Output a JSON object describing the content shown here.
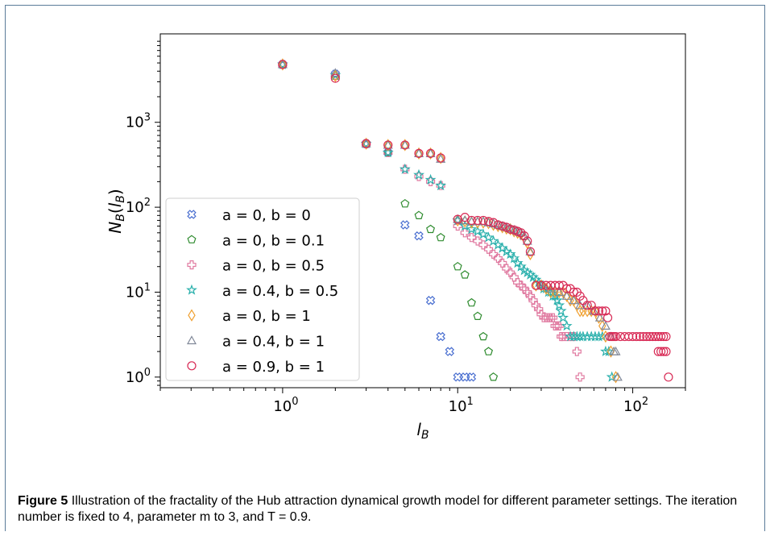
{
  "figure": {
    "label": "Figure 5",
    "caption": "Illustration of the fractality of the Hub attraction dynamical growth model for different parameter settings. The iteration number is fixed to 4, parameter m to 3, and T = 0.9."
  },
  "chart_data": {
    "type": "scatter",
    "title": "",
    "xlabel": "l_B",
    "ylabel": "N_B(l_B)",
    "xscale": "log",
    "yscale": "log",
    "xlim": [
      0.2,
      200
    ],
    "ylim": [
      0.75,
      11000
    ],
    "x_ticks": [
      1,
      10,
      100
    ],
    "x_tick_labels": [
      "10^0",
      "10^1",
      "10^2"
    ],
    "y_ticks": [
      1,
      10,
      100,
      1000
    ],
    "y_tick_labels": [
      "10^0",
      "10^1",
      "10^2",
      "10^3"
    ],
    "grid": false,
    "legend_position": "lower-left",
    "series": [
      {
        "name": "a = 0, b = 0",
        "marker": "x-filled",
        "color": "#4a6fd0",
        "x": [
          1,
          2,
          3,
          4,
          5,
          6,
          7,
          8,
          9,
          10,
          11,
          12
        ],
        "y": [
          4800,
          3700,
          560,
          440,
          62,
          46,
          8,
          3,
          2,
          1,
          1,
          1
        ]
      },
      {
        "name": "a = 0, b = 0.1",
        "marker": "pentagon",
        "color": "#2e8b2e",
        "x": [
          1,
          2,
          3,
          4,
          5,
          6,
          7,
          8,
          10,
          11,
          12,
          13,
          14,
          15
        ],
        "y": [
          4800,
          3500,
          560,
          440,
          110,
          80,
          55,
          44,
          20,
          16,
          7.5,
          5.2,
          3,
          2
        ],
        "x_extra": [
          16
        ],
        "y_extra": [
          1
        ]
      },
      {
        "name": "a = 0, b = 0.5",
        "marker": "plus-filled",
        "color": "#e07aa0",
        "x": [
          1,
          2,
          3,
          4,
          5,
          6,
          7,
          8,
          10,
          11,
          12,
          13,
          14,
          15,
          16,
          17,
          18,
          19,
          20,
          21,
          22,
          23,
          24,
          25,
          26,
          27,
          28,
          29,
          30,
          31,
          32,
          33,
          34,
          35,
          36,
          37,
          38,
          39,
          40,
          42,
          44,
          46,
          48,
          50
        ],
        "y": [
          4800,
          3600,
          560,
          440,
          280,
          230,
          200,
          180,
          60,
          50,
          44,
          40,
          36,
          32,
          28,
          25,
          22,
          19,
          17,
          15,
          13,
          12,
          11,
          10,
          9,
          8,
          7,
          6.3,
          5.5,
          5,
          5,
          5,
          5,
          5,
          4,
          4,
          4,
          3,
          3,
          3,
          3,
          3,
          2,
          1
        ]
      },
      {
        "name": "a = 0.4, b = 0.5",
        "marker": "star",
        "color": "#2ab0ac",
        "x": [
          1,
          2,
          3,
          4,
          5,
          6,
          7,
          8,
          10,
          11,
          12,
          13,
          14,
          15,
          16,
          17,
          18,
          19,
          20,
          21,
          22,
          23,
          24,
          25,
          26,
          27,
          28,
          29,
          30,
          31,
          32,
          33,
          34,
          35,
          36,
          37,
          38,
          39,
          40,
          42,
          44,
          46,
          48,
          50,
          52,
          55,
          58,
          61,
          64,
          67,
          70,
          73,
          76
        ],
        "y": [
          4800,
          3600,
          560,
          440,
          280,
          240,
          210,
          180,
          70,
          60,
          55,
          52,
          48,
          44,
          40,
          36,
          33,
          30,
          28,
          25,
          22,
          20,
          18,
          17,
          16,
          15,
          14,
          13,
          12,
          11,
          11,
          10,
          10,
          9,
          9,
          8,
          7,
          6,
          5,
          4,
          3,
          3,
          3,
          3,
          3,
          3,
          3,
          3,
          3,
          3,
          2,
          2,
          1
        ]
      },
      {
        "name": "a = 0, b = 1",
        "marker": "diamond",
        "color": "#f0a030",
        "x": [
          1,
          2,
          3,
          4,
          5,
          6,
          7,
          8,
          10,
          11,
          12,
          13,
          14,
          15,
          16,
          17,
          18,
          19,
          20,
          21,
          22,
          23,
          24,
          25,
          26,
          28,
          30,
          32,
          34,
          36,
          38,
          40,
          42,
          44,
          46,
          48,
          50,
          52,
          55,
          58,
          61,
          64,
          67,
          70,
          75,
          80
        ],
        "y": [
          4800,
          3500,
          560,
          540,
          540,
          430,
          430,
          380,
          70,
          68,
          66,
          66,
          66,
          65,
          62,
          60,
          58,
          56,
          55,
          52,
          50,
          48,
          44,
          38,
          28,
          12,
          12,
          11,
          10,
          10,
          10,
          10,
          9,
          8,
          8,
          7,
          6,
          6,
          6,
          6,
          6,
          5,
          4,
          3,
          2,
          1
        ]
      },
      {
        "name": "a = 0.4, b = 1",
        "marker": "triangle",
        "color": "#808898",
        "x": [
          1,
          2,
          3,
          4,
          5,
          6,
          7,
          8,
          10,
          11,
          12,
          13,
          14,
          15,
          16,
          17,
          18,
          19,
          20,
          21,
          22,
          23,
          24,
          25,
          26,
          30,
          34,
          38,
          42,
          46,
          50,
          55,
          60,
          65,
          70,
          75,
          78,
          80,
          82
        ],
        "y": [
          4800,
          3800,
          560,
          540,
          540,
          430,
          430,
          370,
          72,
          70,
          68,
          68,
          68,
          66,
          64,
          62,
          60,
          58,
          56,
          54,
          52,
          50,
          46,
          40,
          30,
          12,
          11,
          10,
          9,
          8,
          7,
          7,
          6,
          5,
          4,
          3,
          2,
          2,
          1
        ]
      },
      {
        "name": "a = 0.9, b = 1",
        "marker": "circle",
        "color": "#d82a55",
        "x": [
          1,
          2,
          3,
          4,
          5,
          6,
          7,
          8,
          10,
          11,
          12,
          13,
          14,
          15,
          16,
          17,
          18,
          19,
          20,
          21,
          22,
          23,
          24,
          25,
          26,
          28,
          30,
          32,
          34,
          36,
          38,
          40,
          42,
          44,
          46,
          48,
          50,
          52,
          55,
          58,
          61,
          64,
          67,
          70,
          72,
          74,
          76,
          78,
          80,
          85,
          90,
          95,
          100,
          105,
          110,
          115,
          120,
          125,
          130,
          135,
          140,
          145,
          150,
          155,
          140,
          145,
          150,
          155,
          160
        ],
        "y": [
          4800,
          3300,
          560,
          540,
          540,
          430,
          430,
          380,
          72,
          76,
          70,
          70,
          70,
          68,
          66,
          62,
          60,
          58,
          55,
          54,
          52,
          50,
          46,
          40,
          30,
          12,
          12,
          12,
          12,
          12,
          12,
          12,
          11,
          11,
          10,
          10,
          9,
          8,
          7,
          7,
          6,
          6,
          6,
          6,
          5,
          3,
          3,
          3,
          3,
          3,
          3,
          3,
          3,
          3,
          3,
          3,
          3,
          3,
          3,
          3,
          2,
          2,
          2,
          2,
          3,
          3,
          3,
          3,
          1
        ]
      }
    ]
  }
}
